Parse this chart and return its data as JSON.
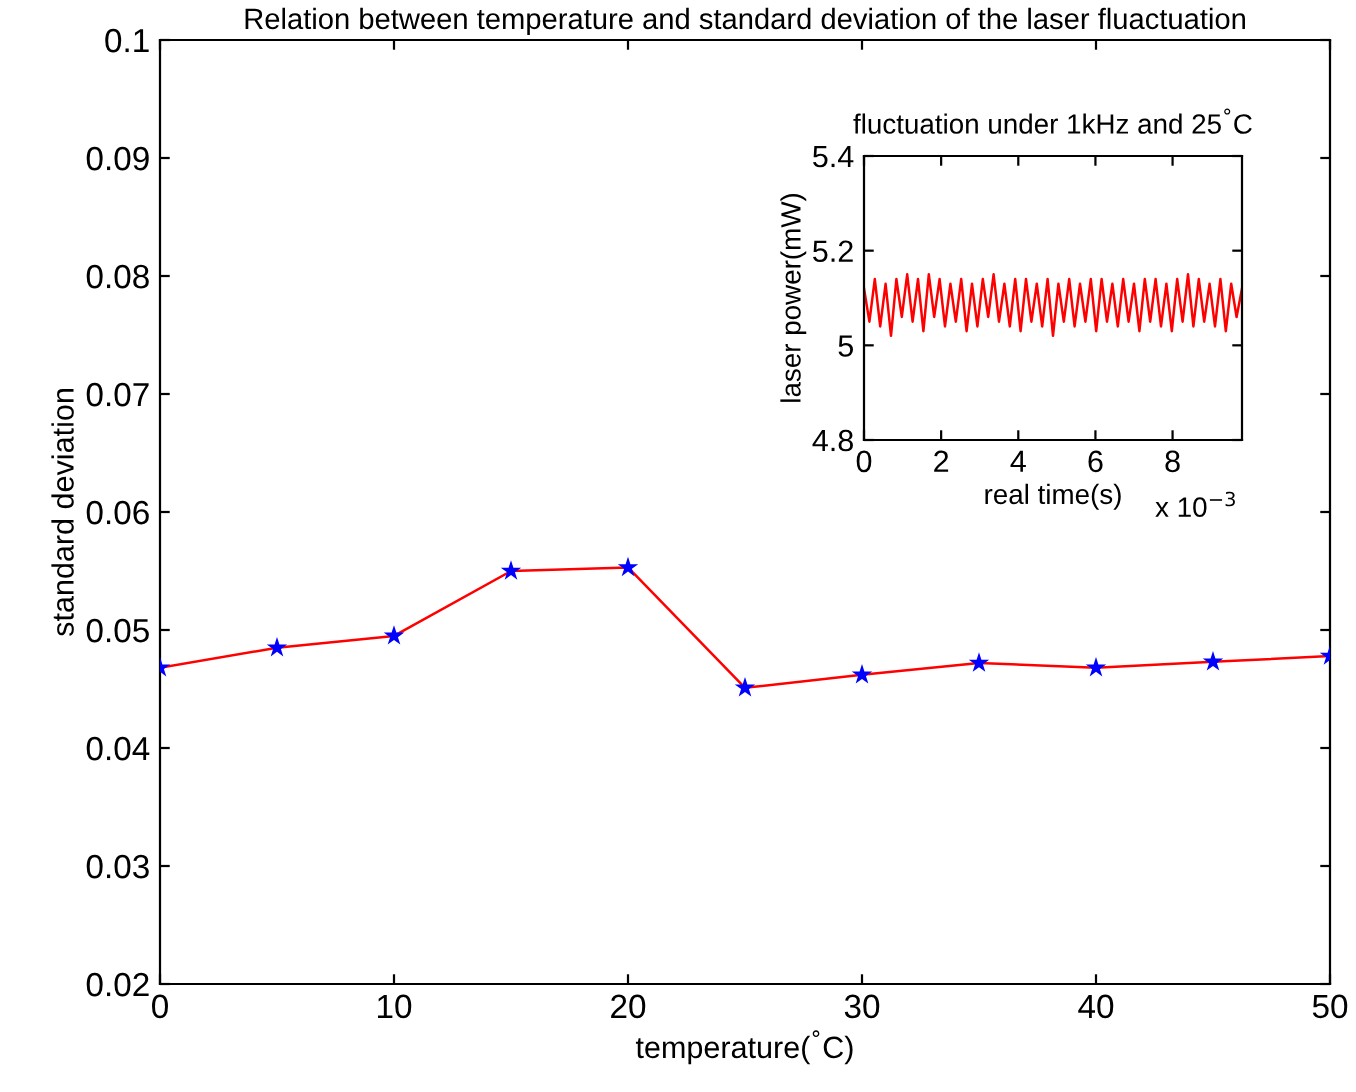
{
  "chart_data": [
    {
      "type": "line",
      "title": "Relation between temperature and standard deviation of the laser fluactuation",
      "xlabel": "temperature($^{°}$C)",
      "ylabel": "standard deviation",
      "x": [
        0,
        5,
        10,
        15,
        20,
        25,
        30,
        35,
        40,
        45,
        50
      ],
      "series": [
        {
          "type": "line",
          "color": "#ff0000",
          "marker": "none",
          "values": [
            0.0468,
            0.0485,
            0.0495,
            0.055,
            0.0553,
            0.0451,
            0.0462,
            0.0472,
            0.0468,
            0.0473,
            0.0478
          ]
        },
        {
          "type": "scatter",
          "color": "#0000ff",
          "marker": "star",
          "values": [
            0.0468,
            0.0485,
            0.0495,
            0.055,
            0.0553,
            0.0451,
            0.0462,
            0.0472,
            0.0468,
            0.0473,
            0.0478
          ]
        }
      ],
      "xlim": [
        0,
        50
      ],
      "xticks": [
        0,
        10,
        20,
        30,
        40,
        50
      ],
      "ylim": [
        0.02,
        0.1
      ],
      "yticks": [
        0.02,
        0.03,
        0.04,
        0.05,
        0.06,
        0.07,
        0.08,
        0.09,
        0.1
      ],
      "grid": false
    },
    {
      "type": "line",
      "title": "fluctuation under 1kHz and 25$^{°}$C",
      "xlabel": "real time(s)",
      "ylabel": "laser power(mW)",
      "annotations": [
        "x 10$^{−3}$"
      ],
      "x": [
        0,
        0.14,
        0.28,
        0.42,
        0.56,
        0.7,
        0.84,
        0.98,
        1.12,
        1.26,
        1.4,
        1.54,
        1.68,
        1.82,
        1.96,
        2.1,
        2.24,
        2.38,
        2.52,
        2.66,
        2.8,
        2.94,
        3.08,
        3.22,
        3.36,
        3.5,
        3.64,
        3.78,
        3.92,
        4.06,
        4.2,
        4.34,
        4.48,
        4.62,
        4.76,
        4.9,
        5.04,
        5.18,
        5.32,
        5.46,
        5.6,
        5.74,
        5.88,
        6.02,
        6.16,
        6.3,
        6.44,
        6.58,
        6.72,
        6.86,
        7.0,
        7.14,
        7.28,
        7.42,
        7.56,
        7.7,
        7.84,
        7.98,
        8.12,
        8.26,
        8.4,
        8.54,
        8.68,
        8.82,
        8.96,
        9.1,
        9.24,
        9.38,
        9.52,
        9.66,
        9.8
      ],
      "series": [
        {
          "color": "#ff0000",
          "values": [
            5.12,
            5.05,
            5.14,
            5.04,
            5.13,
            5.02,
            5.14,
            5.06,
            5.15,
            5.05,
            5.14,
            5.03,
            5.15,
            5.06,
            5.14,
            5.04,
            5.13,
            5.05,
            5.14,
            5.03,
            5.13,
            5.04,
            5.14,
            5.06,
            5.15,
            5.05,
            5.13,
            5.04,
            5.14,
            5.03,
            5.14,
            5.05,
            5.13,
            5.04,
            5.14,
            5.02,
            5.13,
            5.05,
            5.14,
            5.04,
            5.13,
            5.05,
            5.14,
            5.03,
            5.14,
            5.05,
            5.13,
            5.04,
            5.14,
            5.05,
            5.13,
            5.03,
            5.14,
            5.05,
            5.14,
            5.04,
            5.13,
            5.03,
            5.14,
            5.05,
            5.15,
            5.04,
            5.14,
            5.05,
            5.13,
            5.04,
            5.14,
            5.03,
            5.13,
            5.06,
            5.12
          ]
        }
      ],
      "xlim": [
        0,
        9.8
      ],
      "xticks": [
        0,
        2,
        4,
        6,
        8
      ],
      "ylim": [
        4.8,
        5.4
      ],
      "yticks": [
        4.8,
        5,
        5.2,
        5.4
      ],
      "grid": false
    }
  ]
}
